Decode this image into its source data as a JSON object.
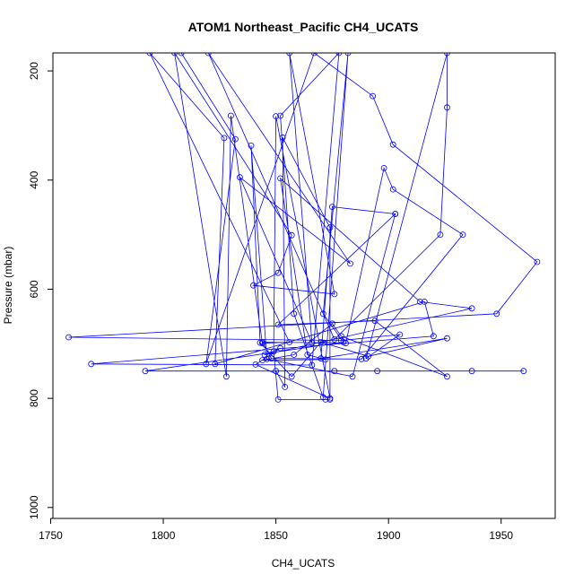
{
  "chart_data": {
    "type": "line",
    "title": "ATOM1 Northeast_Pacific CH4_UCATS",
    "xlabel": "CH4_UCATS",
    "ylabel": "Pressure (mbar)",
    "xlim": [
      1751,
      1974
    ],
    "ylim": [
      1020,
      167
    ],
    "y_reversed": true,
    "x_ticks": [
      1750,
      1800,
      1850,
      1900,
      1950
    ],
    "y_ticks": [
      200,
      400,
      600,
      800,
      1000
    ],
    "grid": false,
    "series": [
      {
        "color": "#0000ff",
        "markers": "open-circle",
        "points": [
          [
            1808,
            167
          ],
          [
            1832,
            325
          ],
          [
            1819,
            737
          ],
          [
            1867,
            167
          ],
          [
            1893,
            246
          ],
          [
            1902,
            335
          ],
          [
            1966,
            550
          ],
          [
            1948,
            645
          ],
          [
            1758,
            688
          ],
          [
            1879,
            694
          ],
          [
            1905,
            683
          ],
          [
            1890,
            727
          ],
          [
            1926,
            167
          ],
          [
            1926,
            267
          ],
          [
            1923,
            500
          ],
          [
            1876,
            692
          ],
          [
            1820,
            167
          ],
          [
            1883,
            553
          ],
          [
            1834,
            395
          ],
          [
            1866,
            698
          ],
          [
            1856,
            167
          ],
          [
            1876,
            609
          ],
          [
            1840,
            593
          ],
          [
            1851,
            570
          ],
          [
            1857,
            501
          ],
          [
            1805,
            167
          ],
          [
            1828,
            760
          ],
          [
            1830,
            282
          ],
          [
            1844,
            699
          ],
          [
            1856,
            697
          ],
          [
            1794,
            167
          ],
          [
            1827,
            323
          ],
          [
            1823,
            737
          ],
          [
            1916,
            623
          ],
          [
            1920,
            686
          ],
          [
            1768,
            737
          ],
          [
            1866,
            739
          ],
          [
            1878,
            167
          ],
          [
            1852,
            282
          ],
          [
            1858,
            645
          ],
          [
            1871,
            798
          ],
          [
            1882,
            167
          ],
          [
            1871,
            645
          ],
          [
            1880,
            697
          ],
          [
            1792,
            750
          ],
          [
            1960,
            750
          ],
          [
            1937,
            750
          ],
          [
            1895,
            750
          ],
          [
            1876,
            750
          ],
          [
            1850,
            750
          ],
          [
            1854,
            779
          ],
          [
            1853,
            322
          ],
          [
            1874,
            487
          ],
          [
            1874,
            802
          ],
          [
            1872,
            802
          ],
          [
            1851,
            802
          ],
          [
            1849,
            714
          ],
          [
            1850,
            283
          ],
          [
            1874,
            800
          ],
          [
            1841,
            738
          ],
          [
            1852,
            708
          ],
          [
            1845,
            720
          ],
          [
            1937,
            635
          ],
          [
            1914,
            623
          ],
          [
            1852,
            397
          ],
          [
            1864,
            720
          ],
          [
            1872,
            729
          ],
          [
            1844,
            730
          ],
          [
            1858,
            720
          ],
          [
            1875,
            663
          ],
          [
            1879,
            686
          ],
          [
            1926,
            760
          ],
          [
            1894,
            658
          ],
          [
            1851,
            665
          ],
          [
            1903,
            462
          ],
          [
            1884,
            760
          ],
          [
            1846,
            728
          ],
          [
            1839,
            337
          ],
          [
            1843,
            698
          ],
          [
            1857,
            760
          ],
          [
            1870,
            697
          ],
          [
            1881,
            699
          ],
          [
            1898,
            378
          ],
          [
            1902,
            417
          ],
          [
            1933,
            500
          ],
          [
            1888,
            728
          ],
          [
            1848,
            727
          ],
          [
            1844,
            697
          ],
          [
            1871,
            698
          ],
          [
            1891,
            723
          ],
          [
            1926,
            690
          ],
          [
            1870,
            727
          ],
          [
            1875,
            449
          ],
          [
            1903,
            462
          ]
        ]
      }
    ]
  }
}
